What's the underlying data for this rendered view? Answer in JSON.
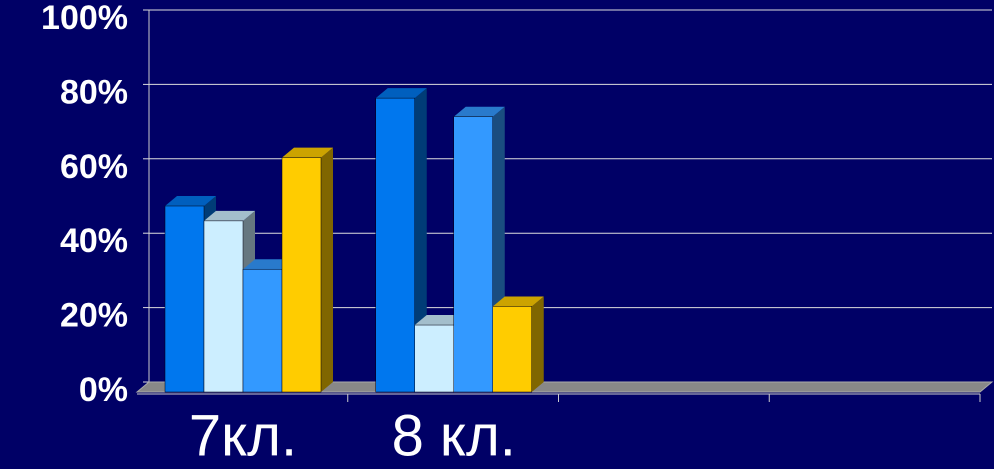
{
  "chart_data": {
    "type": "bar3d",
    "categories": [
      "7кл.",
      "8 кл.",
      null,
      null
    ],
    "series": [
      {
        "color": "#0077ee",
        "values": [
          50,
          79,
          null,
          null
        ]
      },
      {
        "color": "#cceeff",
        "values": [
          46,
          18,
          null,
          null
        ]
      },
      {
        "color": "#3399ff",
        "values": [
          33,
          74,
          null,
          null
        ]
      },
      {
        "color": "#ffcc00",
        "values": [
          63,
          23,
          null,
          null
        ]
      }
    ],
    "ylim": [
      0,
      100
    ],
    "yticks": [
      {
        "value": 0,
        "label": "0%"
      },
      {
        "value": 20,
        "label": "20%"
      },
      {
        "value": 40,
        "label": "40%"
      },
      {
        "value": 60,
        "label": "60%"
      },
      {
        "value": 80,
        "label": "80%"
      },
      {
        "value": 100,
        "label": "100%"
      }
    ],
    "grid": true
  }
}
